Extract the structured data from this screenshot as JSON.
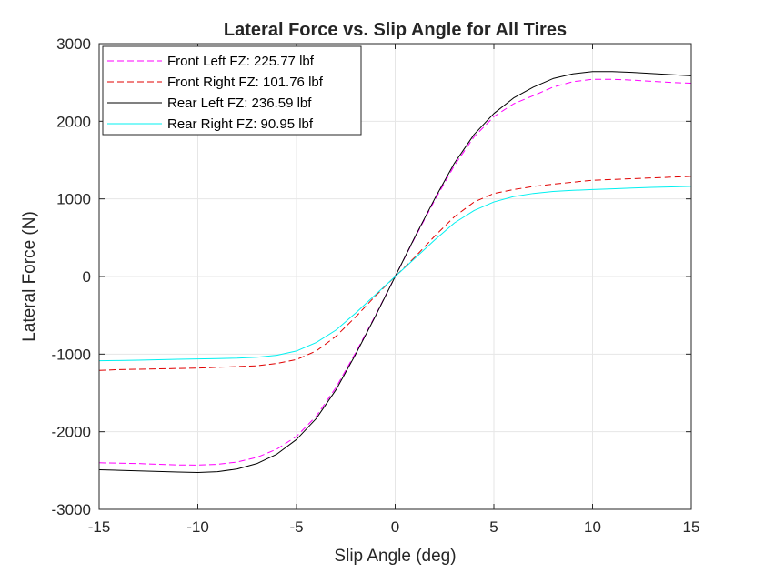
{
  "chart_data": {
    "type": "line",
    "title": "Lateral Force vs. Slip Angle for All Tires",
    "xlabel": "Slip Angle (deg)",
    "ylabel": "Lateral Force (N)",
    "xlim": [
      -15,
      15
    ],
    "ylim": [
      -3000,
      3000
    ],
    "xticks": [
      -15,
      -10,
      -5,
      0,
      5,
      10,
      15
    ],
    "yticks": [
      -3000,
      -2000,
      -1000,
      0,
      1000,
      2000,
      3000
    ],
    "grid": true,
    "legend_position": "top-left",
    "x": [
      -15,
      -14,
      -13,
      -12,
      -11,
      -10,
      -9,
      -8,
      -7,
      -6,
      -5,
      -4,
      -3,
      -2,
      -1,
      0,
      1,
      2,
      3,
      4,
      5,
      6,
      7,
      8,
      9,
      10,
      11,
      12,
      13,
      14,
      15
    ],
    "series": [
      {
        "name": "Front Left FZ: 225.77 lbf",
        "color": "#ff00ff",
        "dash": "dashed",
        "values": [
          -2400,
          -2405,
          -2410,
          -2420,
          -2428,
          -2430,
          -2420,
          -2390,
          -2330,
          -2225,
          -2060,
          -1800,
          -1430,
          -980,
          -500,
          0,
          500,
          980,
          1430,
          1800,
          2060,
          2225,
          2330,
          2440,
          2510,
          2540,
          2540,
          2530,
          2515,
          2500,
          2490
        ]
      },
      {
        "name": "Front Right FZ: 101.76 lbf",
        "color": "#e00000",
        "dash": "dashed",
        "values": [
          -1210,
          -1200,
          -1195,
          -1190,
          -1185,
          -1180,
          -1170,
          -1160,
          -1150,
          -1120,
          -1070,
          -960,
          -770,
          -520,
          -250,
          0,
          250,
          520,
          770,
          960,
          1070,
          1120,
          1160,
          1190,
          1215,
          1240,
          1250,
          1260,
          1270,
          1280,
          1290
        ]
      },
      {
        "name": "Rear Left FZ: 236.59 lbf",
        "color": "#000000",
        "dash": "solid",
        "values": [
          -2490,
          -2497,
          -2505,
          -2512,
          -2520,
          -2525,
          -2515,
          -2480,
          -2410,
          -2290,
          -2100,
          -1830,
          -1460,
          -1000,
          -510,
          0,
          510,
          1000,
          1460,
          1830,
          2100,
          2300,
          2440,
          2550,
          2610,
          2640,
          2640,
          2630,
          2615,
          2600,
          2585
        ]
      },
      {
        "name": "Rear Right FZ: 90.95 lbf",
        "color": "#00f0f0",
        "dash": "solid",
        "values": [
          -1085,
          -1082,
          -1078,
          -1072,
          -1066,
          -1062,
          -1058,
          -1052,
          -1040,
          -1015,
          -960,
          -850,
          -690,
          -470,
          -235,
          0,
          235,
          470,
          690,
          850,
          960,
          1030,
          1070,
          1095,
          1110,
          1120,
          1130,
          1140,
          1148,
          1155,
          1162
        ]
      }
    ]
  }
}
